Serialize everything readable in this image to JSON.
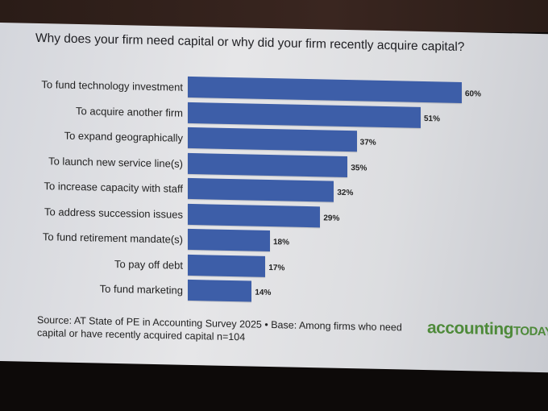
{
  "chart_data": {
    "type": "bar",
    "orientation": "horizontal",
    "title": "Why does your firm need capital or why did your firm recently acquire capital?",
    "categories": [
      "To fund technology investment",
      "To acquire another firm",
      "To expand geographically",
      "To launch new service line(s)",
      "To increase capacity with staff",
      "To address succession issues",
      "To fund retirement mandate(s)",
      "To pay off debt",
      "To fund marketing"
    ],
    "values": [
      60,
      51,
      37,
      35,
      32,
      29,
      18,
      17,
      14
    ],
    "value_labels": [
      "60%",
      "51%",
      "37%",
      "35%",
      "32%",
      "29%",
      "18%",
      "17%",
      "14%"
    ],
    "xlim": [
      0,
      60
    ],
    "grid": false,
    "bar_color": "#3d5ea8"
  },
  "source": "Source: AT State of PE in Accounting Survey 2025 • Base: Among firms who need capital or have recently acquired capital n=104",
  "logo": {
    "main": "accounting",
    "sub": "TODAY"
  }
}
